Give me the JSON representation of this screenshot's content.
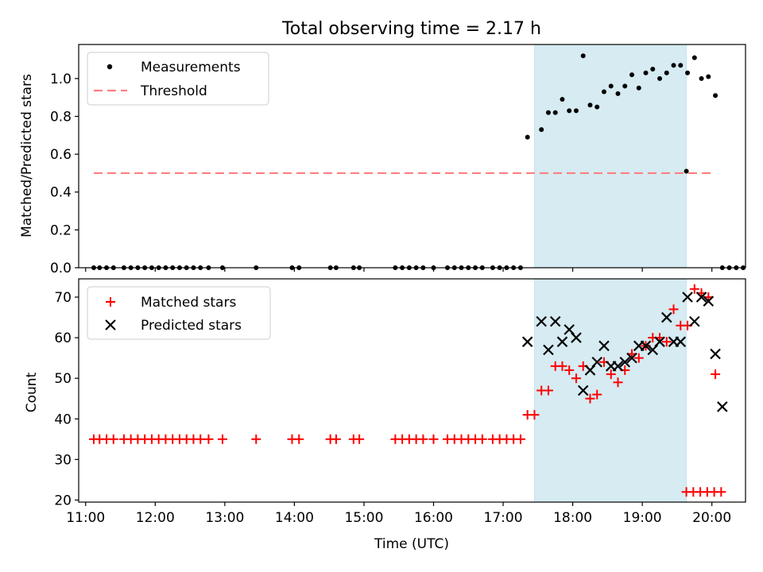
{
  "chart_data": [
    {
      "type": "scatter",
      "title": "Total observing time = 2.17 h",
      "xlabel": "",
      "ylabel": "Matched/Predicted stars",
      "xlim": [
        "10:54",
        "20:29"
      ],
      "ylim": [
        0,
        1.18
      ],
      "yticks": [
        0.0,
        0.2,
        0.4,
        0.6,
        0.8,
        1.0
      ],
      "ytick_labels": [
        "0.0",
        "0.2",
        "0.4",
        "0.6",
        "0.8",
        "1.0"
      ],
      "xticks": [
        "11:00",
        "12:00",
        "13:00",
        "14:00",
        "15:00",
        "16:00",
        "17:00",
        "18:00",
        "19:00",
        "20:00"
      ],
      "shaded_region": {
        "from": "17:27",
        "to": "19:38"
      },
      "legend_position": "top-left",
      "series": [
        {
          "name": "Measurements",
          "marker": "dot",
          "color": "#000000",
          "points": [
            [
              "11:07",
              0
            ],
            [
              "11:12",
              0
            ],
            [
              "11:18",
              0
            ],
            [
              "11:24",
              0
            ],
            [
              "11:33",
              0
            ],
            [
              "11:39",
              0
            ],
            [
              "11:45",
              0
            ],
            [
              "11:51",
              0
            ],
            [
              "11:57",
              0
            ],
            [
              "12:03",
              0
            ],
            [
              "12:09",
              0
            ],
            [
              "12:15",
              0
            ],
            [
              "12:21",
              0
            ],
            [
              "12:27",
              0
            ],
            [
              "12:33",
              0
            ],
            [
              "12:39",
              0
            ],
            [
              "12:46",
              0
            ],
            [
              "12:58",
              0
            ],
            [
              "13:27",
              0
            ],
            [
              "13:58",
              0
            ],
            [
              "14:04",
              0
            ],
            [
              "14:31",
              0
            ],
            [
              "14:36",
              0
            ],
            [
              "14:51",
              0
            ],
            [
              "14:56",
              0
            ],
            [
              "15:27",
              0
            ],
            [
              "15:33",
              0
            ],
            [
              "15:39",
              0
            ],
            [
              "15:45",
              0
            ],
            [
              "15:51",
              0
            ],
            [
              "16:00",
              0
            ],
            [
              "16:12",
              0
            ],
            [
              "16:18",
              0
            ],
            [
              "16:24",
              0
            ],
            [
              "16:30",
              0
            ],
            [
              "16:36",
              0
            ],
            [
              "16:42",
              0
            ],
            [
              "16:51",
              0
            ],
            [
              "16:57",
              0
            ],
            [
              "17:03",
              0
            ],
            [
              "17:09",
              0
            ],
            [
              "17:15",
              0
            ],
            [
              "17:21",
              0.69
            ],
            [
              "17:33",
              0.73
            ],
            [
              "17:39",
              0.82
            ],
            [
              "17:45",
              0.82
            ],
            [
              "17:51",
              0.89
            ],
            [
              "17:57",
              0.83
            ],
            [
              "18:03",
              0.83
            ],
            [
              "18:09",
              1.12
            ],
            [
              "18:15",
              0.86
            ],
            [
              "18:21",
              0.85
            ],
            [
              "18:27",
              0.93
            ],
            [
              "18:33",
              0.96
            ],
            [
              "18:39",
              0.92
            ],
            [
              "18:45",
              0.96
            ],
            [
              "18:51",
              1.02
            ],
            [
              "18:57",
              0.95
            ],
            [
              "19:03",
              1.03
            ],
            [
              "19:09",
              1.05
            ],
            [
              "19:15",
              1.0
            ],
            [
              "19:21",
              1.03
            ],
            [
              "19:27",
              1.07
            ],
            [
              "19:33",
              1.07
            ],
            [
              "19:39",
              1.03
            ],
            [
              "19:45",
              1.11
            ],
            [
              "19:51",
              1.0
            ],
            [
              "19:57",
              1.01
            ],
            [
              "20:03",
              0.91
            ],
            [
              "19:38",
              0.51
            ],
            [
              "20:09",
              0
            ],
            [
              "20:15",
              0
            ],
            [
              "20:21",
              0
            ],
            [
              "20:27",
              0
            ]
          ]
        },
        {
          "name": "Threshold",
          "line_style": "dashed",
          "color": "#ff7f7f",
          "points": [
            [
              "11:07",
              0.5
            ],
            [
              "20:00",
              0.5
            ]
          ]
        }
      ]
    },
    {
      "type": "scatter",
      "title": "",
      "xlabel": "Time (UTC)",
      "ylabel": "Count",
      "xlim": [
        "10:54",
        "20:29"
      ],
      "ylim": [
        19.5,
        74.5
      ],
      "yticks": [
        20,
        30,
        40,
        50,
        60,
        70
      ],
      "ytick_labels": [
        "20",
        "30",
        "40",
        "50",
        "60",
        "70"
      ],
      "xticks": [
        "11:00",
        "12:00",
        "13:00",
        "14:00",
        "15:00",
        "16:00",
        "17:00",
        "18:00",
        "19:00",
        "20:00"
      ],
      "xtick_labels": [
        "11:00",
        "12:00",
        "13:00",
        "14:00",
        "15:00",
        "16:00",
        "17:00",
        "18:00",
        "19:00",
        "20:00"
      ],
      "shaded_region": {
        "from": "17:27",
        "to": "19:38"
      },
      "legend_position": "top-left",
      "series": [
        {
          "name": "Matched stars",
          "marker": "plus",
          "color": "#ff0000",
          "points": [
            [
              "11:07",
              35
            ],
            [
              "11:12",
              35
            ],
            [
              "11:18",
              35
            ],
            [
              "11:24",
              35
            ],
            [
              "11:33",
              35
            ],
            [
              "11:39",
              35
            ],
            [
              "11:45",
              35
            ],
            [
              "11:51",
              35
            ],
            [
              "11:57",
              35
            ],
            [
              "12:03",
              35
            ],
            [
              "12:09",
              35
            ],
            [
              "12:15",
              35
            ],
            [
              "12:21",
              35
            ],
            [
              "12:27",
              35
            ],
            [
              "12:33",
              35
            ],
            [
              "12:39",
              35
            ],
            [
              "12:46",
              35
            ],
            [
              "12:58",
              35
            ],
            [
              "13:27",
              35
            ],
            [
              "13:58",
              35
            ],
            [
              "14:04",
              35
            ],
            [
              "14:31",
              35
            ],
            [
              "14:36",
              35
            ],
            [
              "14:51",
              35
            ],
            [
              "14:56",
              35
            ],
            [
              "15:27",
              35
            ],
            [
              "15:33",
              35
            ],
            [
              "15:39",
              35
            ],
            [
              "15:45",
              35
            ],
            [
              "15:51",
              35
            ],
            [
              "16:00",
              35
            ],
            [
              "16:12",
              35
            ],
            [
              "16:18",
              35
            ],
            [
              "16:24",
              35
            ],
            [
              "16:30",
              35
            ],
            [
              "16:36",
              35
            ],
            [
              "16:42",
              35
            ],
            [
              "16:51",
              35
            ],
            [
              "16:57",
              35
            ],
            [
              "17:03",
              35
            ],
            [
              "17:09",
              35
            ],
            [
              "17:15",
              35
            ],
            [
              "17:21",
              41
            ],
            [
              "17:27",
              41
            ],
            [
              "17:33",
              47
            ],
            [
              "17:39",
              47
            ],
            [
              "17:45",
              53
            ],
            [
              "17:51",
              53
            ],
            [
              "17:57",
              52
            ],
            [
              "18:03",
              50
            ],
            [
              "18:09",
              53
            ],
            [
              "18:15",
              45
            ],
            [
              "18:21",
              46
            ],
            [
              "18:27",
              54
            ],
            [
              "18:33",
              51
            ],
            [
              "18:39",
              49
            ],
            [
              "18:45",
              52
            ],
            [
              "18:51",
              56
            ],
            [
              "18:57",
              55
            ],
            [
              "19:03",
              58
            ],
            [
              "19:09",
              60
            ],
            [
              "19:15",
              60
            ],
            [
              "19:21",
              59
            ],
            [
              "19:27",
              67
            ],
            [
              "19:33",
              63
            ],
            [
              "19:39",
              63
            ],
            [
              "19:45",
              72
            ],
            [
              "19:51",
              71
            ],
            [
              "19:57",
              70
            ],
            [
              "20:03",
              51
            ],
            [
              "19:38",
              22
            ],
            [
              "19:44",
              22
            ],
            [
              "19:50",
              22
            ],
            [
              "19:56",
              22
            ],
            [
              "20:02",
              22
            ],
            [
              "20:08",
              22
            ]
          ]
        },
        {
          "name": "Predicted stars",
          "marker": "x",
          "color": "#000000",
          "points": [
            [
              "17:21",
              59
            ],
            [
              "17:33",
              64
            ],
            [
              "17:39",
              57
            ],
            [
              "17:45",
              64
            ],
            [
              "17:51",
              59
            ],
            [
              "17:57",
              62
            ],
            [
              "18:03",
              60
            ],
            [
              "18:09",
              47
            ],
            [
              "18:15",
              52
            ],
            [
              "18:21",
              54
            ],
            [
              "18:27",
              58
            ],
            [
              "18:33",
              53
            ],
            [
              "18:39",
              53
            ],
            [
              "18:45",
              54
            ],
            [
              "18:51",
              55
            ],
            [
              "18:57",
              58
            ],
            [
              "19:03",
              58
            ],
            [
              "19:09",
              57
            ],
            [
              "19:15",
              59
            ],
            [
              "19:21",
              65
            ],
            [
              "19:27",
              59
            ],
            [
              "19:33",
              59
            ],
            [
              "19:39",
              70
            ],
            [
              "19:45",
              64
            ],
            [
              "19:51",
              70
            ],
            [
              "19:57",
              69
            ],
            [
              "20:03",
              56
            ],
            [
              "20:09",
              43
            ]
          ]
        }
      ]
    }
  ]
}
